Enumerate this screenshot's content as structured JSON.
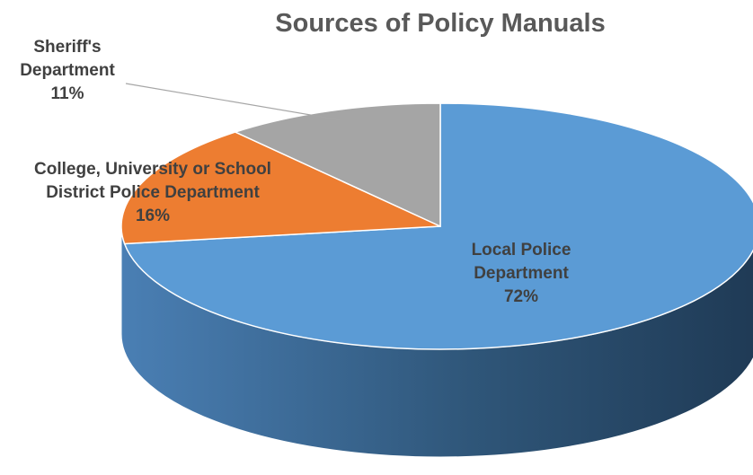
{
  "chart_data": {
    "type": "pie",
    "title": "Sources of Policy Manuals",
    "slices": [
      {
        "label_lines": [
          "Local Police",
          "Department"
        ],
        "percent_label": "72%",
        "value": 72,
        "color": "#5B9BD5"
      },
      {
        "label_lines": [
          "College, University or School",
          "District Police Department"
        ],
        "percent_label": "16%",
        "value": 16,
        "color": "#ED7D31"
      },
      {
        "label_lines": [
          "Sheriff's",
          "Department"
        ],
        "percent_label": "11%",
        "value": 11,
        "color": "#A5A5A5"
      }
    ],
    "style": "3d"
  }
}
